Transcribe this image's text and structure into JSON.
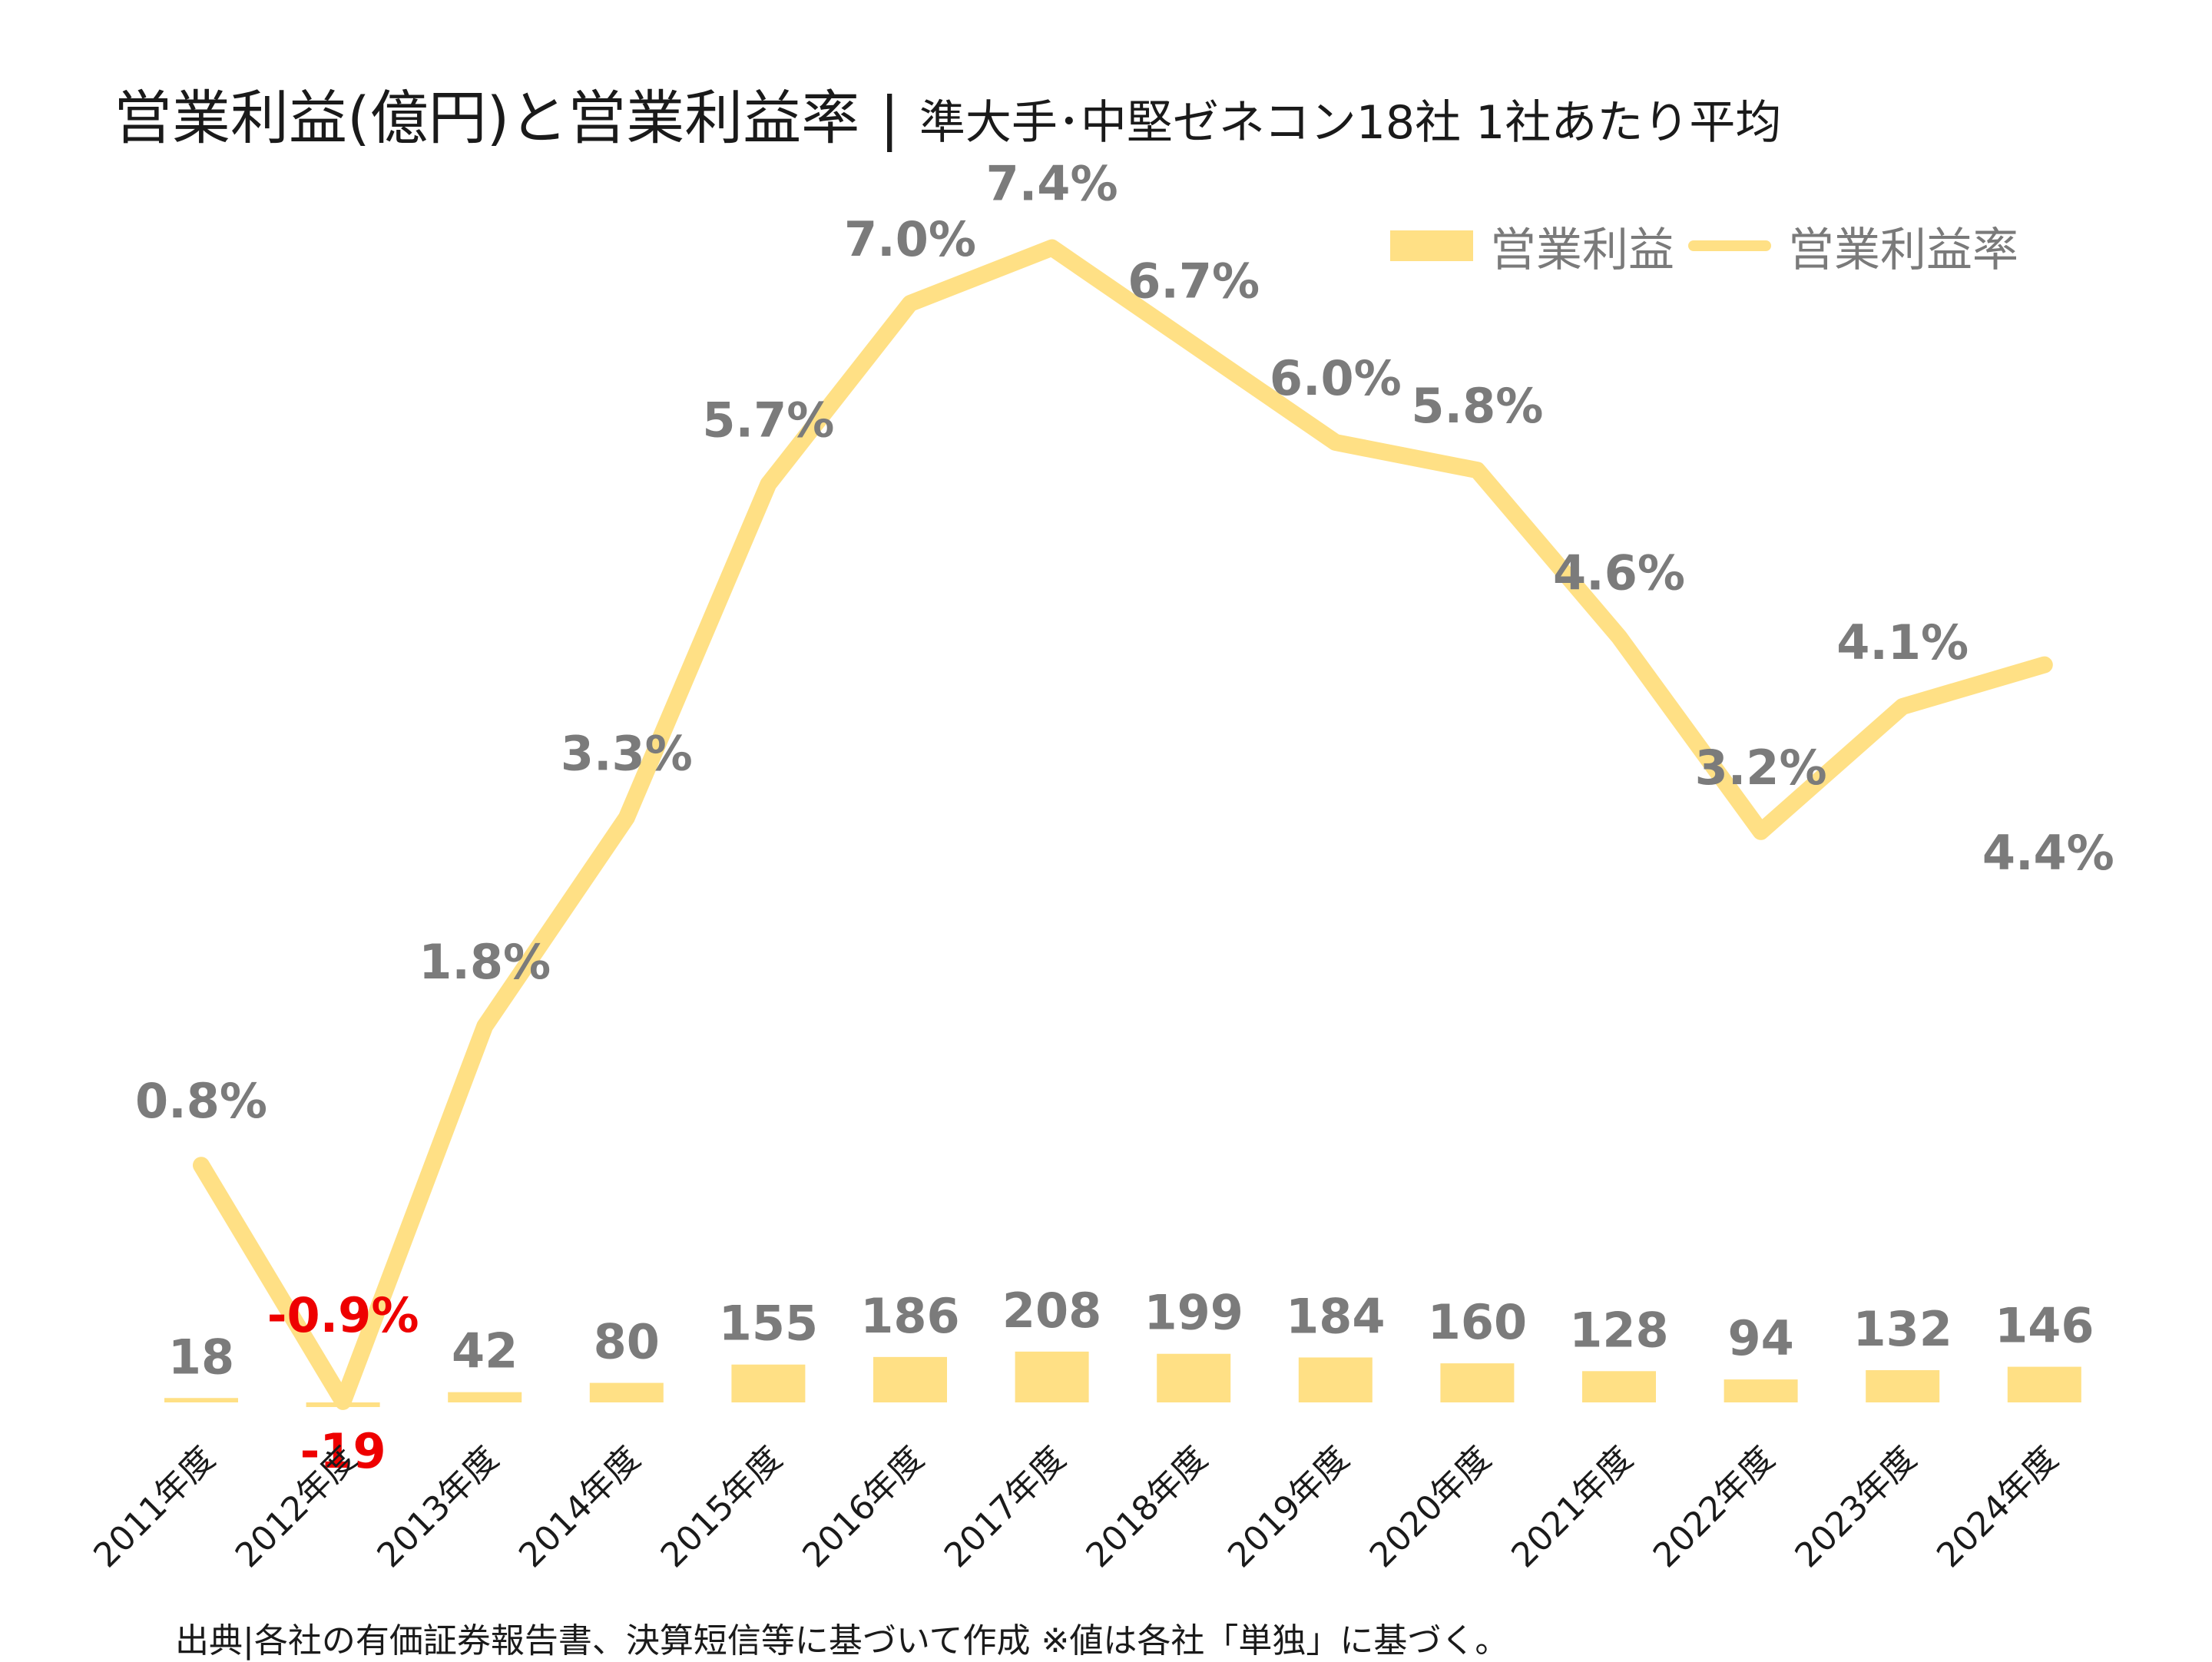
{
  "title": {
    "main": "営業利益(億円)と営業利益率",
    "separator": "|",
    "sub": "準大手･中堅ゼネコン18社 1社あたり平均"
  },
  "legend": {
    "bar_label": "営業利益",
    "line_label": "営業利益率"
  },
  "source": "出典|各社の有価証券報告書、決算短信等に基づいて作成 ※値は各社「単独」に基づく。",
  "colors": {
    "series": "#ffe085",
    "label": "#7b7b7b",
    "negative": "#ee0000"
  },
  "chart_data": {
    "type": "bar+line",
    "categories": [
      "2011年度",
      "2012年度",
      "2013年度",
      "2014年度",
      "2015年度",
      "2016年度",
      "2017年度",
      "2018年度",
      "2019年度",
      "2020年度",
      "2021年度",
      "2022年度",
      "2023年度",
      "2024年度"
    ],
    "series": [
      {
        "name": "営業利益",
        "type": "bar",
        "values": [
          18,
          -19,
          42,
          80,
          155,
          186,
          208,
          199,
          184,
          160,
          128,
          94,
          132,
          146
        ],
        "labels": [
          "18",
          "-19",
          "42",
          "80",
          "155",
          "186",
          "208",
          "199",
          "184",
          "160",
          "128",
          "94",
          "132",
          "146"
        ]
      },
      {
        "name": "営業利益率",
        "type": "line",
        "values": [
          0.8,
          -0.9,
          1.8,
          3.3,
          5.7,
          7.0,
          7.4,
          6.7,
          6.0,
          5.8,
          4.6,
          3.2,
          4.1,
          4.4
        ],
        "labels": [
          "0.8%",
          "-0.9%",
          "1.8%",
          "3.3%",
          "5.7%",
          "7.0%",
          "7.4%",
          "6.7%",
          "6.0%",
          "5.8%",
          "4.6%",
          "3.2%",
          "4.1%",
          "4.4%"
        ]
      }
    ],
    "ylim_bar": [
      0,
      1000
    ],
    "ylim_line": [
      -1,
      14
    ]
  }
}
